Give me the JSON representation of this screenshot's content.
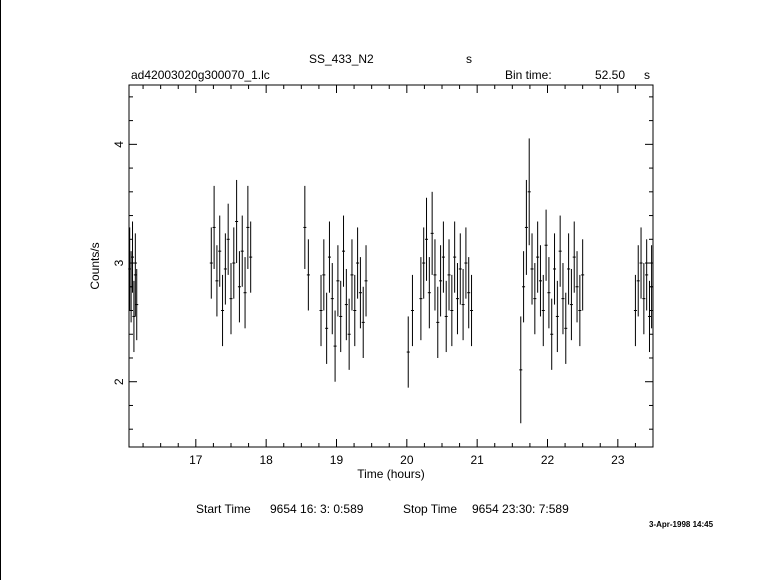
{
  "header": {
    "object": "SS_433_N2",
    "unit_s": "s",
    "filename": "ad42003020g300070_1.lc",
    "bin_label": "Bin time:",
    "bin_value": "52.50",
    "bin_unit": "s"
  },
  "footer": {
    "start_label": "Start Time",
    "start_value": "9654  16: 3: 0:589",
    "stop_label": "Stop Time",
    "stop_value": "9654  23:30: 7:589",
    "date_stamp": "3-Apr-1998 14:45"
  },
  "chart_data": {
    "type": "scatter",
    "xlabel": "Time (hours)",
    "ylabel": "Counts/s",
    "xlim": [
      16.05,
      23.5
    ],
    "ylim": [
      1.45,
      4.5
    ],
    "x_ticks": [
      17,
      18,
      19,
      20,
      21,
      22,
      23
    ],
    "y_ticks": [
      2,
      3,
      4
    ],
    "grid": false,
    "error_bars": true,
    "series": [
      {
        "points": [
          [
            16.06,
            2.95,
            0.35
          ],
          [
            16.08,
            2.8,
            0.3
          ],
          [
            16.1,
            3.05,
            0.3
          ],
          [
            16.12,
            2.55,
            0.3
          ],
          [
            16.14,
            2.9,
            0.35
          ],
          [
            16.16,
            2.65,
            0.3
          ],
          [
            17.22,
            3.0,
            0.3
          ],
          [
            17.26,
            3.3,
            0.35
          ],
          [
            17.3,
            2.85,
            0.3
          ],
          [
            17.34,
            3.1,
            0.3
          ],
          [
            17.38,
            2.6,
            0.3
          ],
          [
            17.42,
            2.95,
            0.3
          ],
          [
            17.46,
            3.2,
            0.3
          ],
          [
            17.5,
            2.7,
            0.3
          ],
          [
            17.54,
            3.0,
            0.3
          ],
          [
            17.58,
            3.35,
            0.35
          ],
          [
            17.62,
            2.8,
            0.3
          ],
          [
            17.66,
            3.1,
            0.3
          ],
          [
            17.7,
            2.75,
            0.3
          ],
          [
            17.74,
            3.3,
            0.35
          ],
          [
            17.78,
            3.05,
            0.3
          ],
          [
            18.55,
            3.3,
            0.35
          ],
          [
            18.6,
            2.9,
            0.3
          ],
          [
            18.78,
            2.6,
            0.3
          ],
          [
            18.82,
            2.9,
            0.3
          ],
          [
            18.86,
            2.45,
            0.3
          ],
          [
            18.9,
            3.05,
            0.3
          ],
          [
            18.94,
            2.7,
            0.3
          ],
          [
            18.98,
            2.3,
            0.3
          ],
          [
            19.02,
            2.85,
            0.3
          ],
          [
            19.06,
            2.55,
            0.3
          ],
          [
            19.1,
            3.1,
            0.3
          ],
          [
            19.14,
            2.65,
            0.3
          ],
          [
            19.18,
            2.4,
            0.3
          ],
          [
            19.22,
            2.9,
            0.3
          ],
          [
            19.26,
            2.6,
            0.3
          ],
          [
            19.3,
            3.0,
            0.3
          ],
          [
            19.34,
            2.75,
            0.3
          ],
          [
            19.38,
            2.5,
            0.3
          ],
          [
            19.42,
            2.85,
            0.3
          ],
          [
            20.02,
            2.25,
            0.3
          ],
          [
            20.08,
            2.6,
            0.3
          ],
          [
            20.2,
            2.7,
            0.35
          ],
          [
            20.24,
            3.0,
            0.3
          ],
          [
            20.28,
            3.2,
            0.35
          ],
          [
            20.32,
            2.75,
            0.3
          ],
          [
            20.36,
            3.25,
            0.35
          ],
          [
            20.4,
            2.9,
            0.3
          ],
          [
            20.44,
            2.5,
            0.3
          ],
          [
            20.48,
            2.85,
            0.3
          ],
          [
            20.52,
            3.05,
            0.3
          ],
          [
            20.56,
            2.55,
            0.3
          ],
          [
            20.6,
            2.9,
            0.3
          ],
          [
            20.64,
            2.6,
            0.3
          ],
          [
            20.68,
            3.05,
            0.3
          ],
          [
            20.72,
            2.7,
            0.3
          ],
          [
            20.76,
            2.95,
            0.3
          ],
          [
            20.8,
            2.65,
            0.3
          ],
          [
            20.84,
            3.0,
            0.3
          ],
          [
            20.88,
            2.75,
            0.3
          ],
          [
            20.92,
            2.6,
            0.3
          ],
          [
            21.62,
            2.1,
            0.45
          ],
          [
            21.66,
            2.8,
            0.3
          ],
          [
            21.7,
            3.3,
            0.4
          ],
          [
            21.74,
            3.6,
            0.45
          ],
          [
            21.78,
            2.95,
            0.3
          ],
          [
            21.82,
            2.7,
            0.3
          ],
          [
            21.86,
            3.05,
            0.3
          ],
          [
            21.9,
            2.85,
            0.3
          ],
          [
            21.94,
            2.6,
            0.3
          ],
          [
            21.98,
            3.15,
            0.3
          ],
          [
            22.02,
            2.75,
            0.3
          ],
          [
            22.06,
            2.4,
            0.3
          ],
          [
            22.1,
            2.95,
            0.3
          ],
          [
            22.14,
            2.55,
            0.3
          ],
          [
            22.18,
            3.1,
            0.3
          ],
          [
            22.22,
            2.7,
            0.3
          ],
          [
            22.26,
            2.45,
            0.3
          ],
          [
            22.3,
            2.95,
            0.3
          ],
          [
            22.34,
            2.65,
            0.3
          ],
          [
            22.38,
            3.05,
            0.3
          ],
          [
            22.42,
            2.8,
            0.3
          ],
          [
            22.46,
            2.6,
            0.3
          ],
          [
            22.5,
            2.9,
            0.3
          ],
          [
            23.25,
            2.6,
            0.3
          ],
          [
            23.29,
            2.85,
            0.3
          ],
          [
            23.33,
            3.0,
            0.3
          ],
          [
            23.37,
            2.7,
            0.3
          ],
          [
            23.41,
            2.9,
            0.3
          ],
          [
            23.45,
            2.55,
            0.3
          ],
          [
            23.48,
            2.8,
            0.35
          ]
        ]
      }
    ]
  }
}
